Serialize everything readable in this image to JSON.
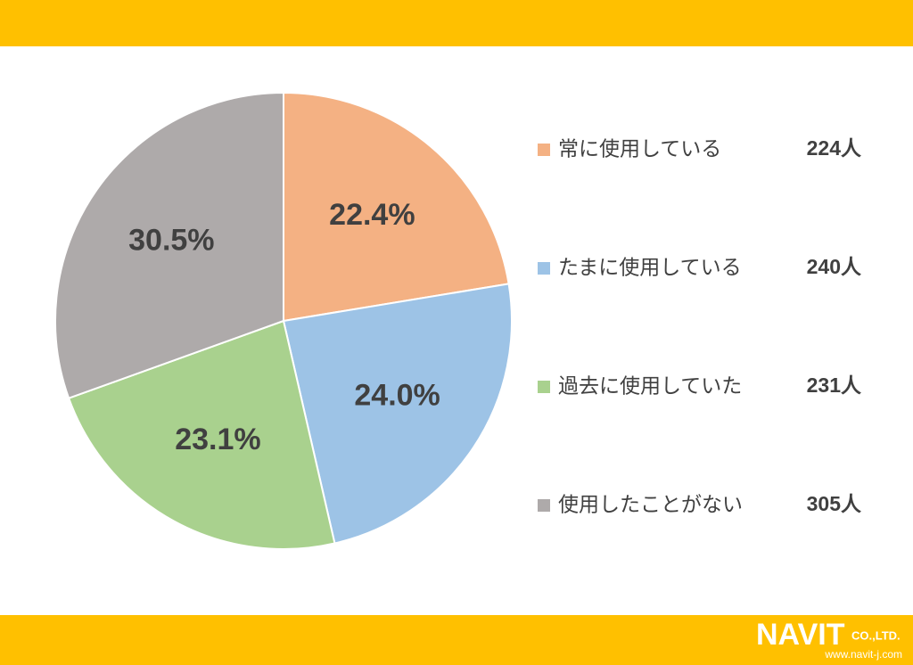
{
  "chart_data": {
    "type": "pie",
    "categories": [
      "常に使用している",
      "たまに使用している",
      "過去に使用していた",
      "使用したことがない"
    ],
    "values": [
      22.4,
      24.0,
      23.1,
      30.5
    ],
    "value_labels": [
      "22.4%",
      "24.0%",
      "23.1%",
      "30.5%"
    ],
    "colors": [
      "#F4B183",
      "#9DC3E6",
      "#A9D18E",
      "#AEAAAA"
    ],
    "counts": [
      224,
      240,
      231,
      305
    ],
    "count_labels": [
      "224人",
      "240人",
      "231人",
      "305人"
    ],
    "legend": "right"
  },
  "logo": {
    "name": "NAVIT",
    "suffix": "CO.,LTD.",
    "url": "www.navit-j.com"
  }
}
